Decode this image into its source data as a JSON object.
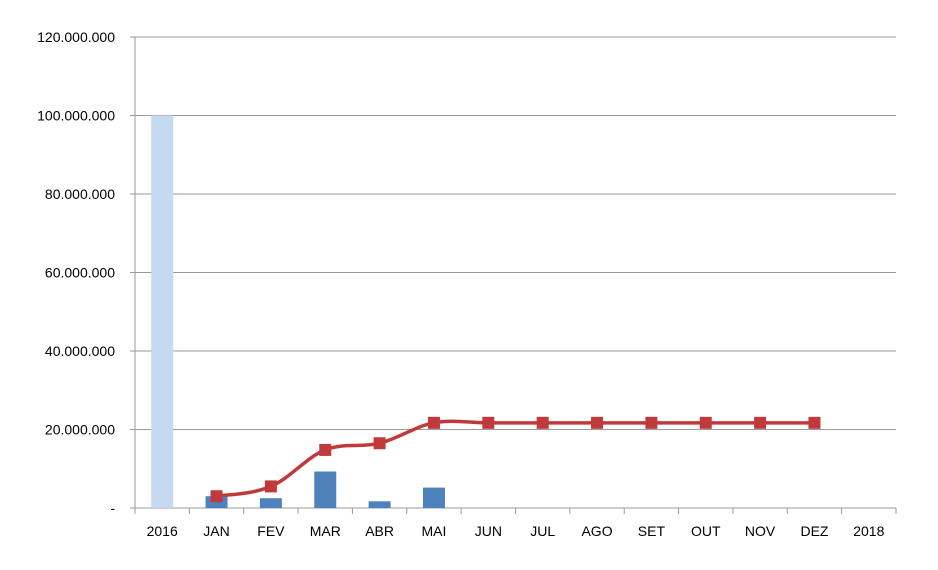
{
  "chart_data": {
    "type": "bar",
    "title": "",
    "xlabel": "",
    "ylabel": "",
    "categories": [
      "2016",
      "JAN",
      "FEV",
      "MAR",
      "ABR",
      "MAI",
      "JUN",
      "JUL",
      "AGO",
      "SET",
      "OUT",
      "NOV",
      "DEZ",
      "2018"
    ],
    "ylim": [
      0,
      120000000
    ],
    "y_ticks": [
      0,
      20000000,
      40000000,
      60000000,
      80000000,
      100000000,
      120000000
    ],
    "y_tick_labels": [
      "-",
      "20.000.000",
      "40.000.000",
      "60.000.000",
      "80.000.000",
      "100.000.000",
      "120.000.000"
    ],
    "grid": true,
    "legend": "none",
    "series": [
      {
        "kind": "bar",
        "color": "#C5D9F1",
        "values": [
          100000000,
          null,
          null,
          null,
          null,
          null,
          null,
          null,
          null,
          null,
          null,
          null,
          null,
          null
        ]
      },
      {
        "kind": "bar",
        "color": "#4F81BD",
        "values": [
          null,
          3000000,
          2500000,
          9300000,
          1700000,
          5200000,
          null,
          null,
          null,
          null,
          null,
          null,
          null,
          null
        ]
      },
      {
        "kind": "line",
        "color": "#C0393B",
        "marker": "square",
        "values": [
          null,
          3000000,
          5500000,
          14800000,
          16500000,
          21700000,
          21700000,
          21700000,
          21700000,
          21700000,
          21700000,
          21700000,
          21700000,
          null
        ]
      }
    ]
  }
}
